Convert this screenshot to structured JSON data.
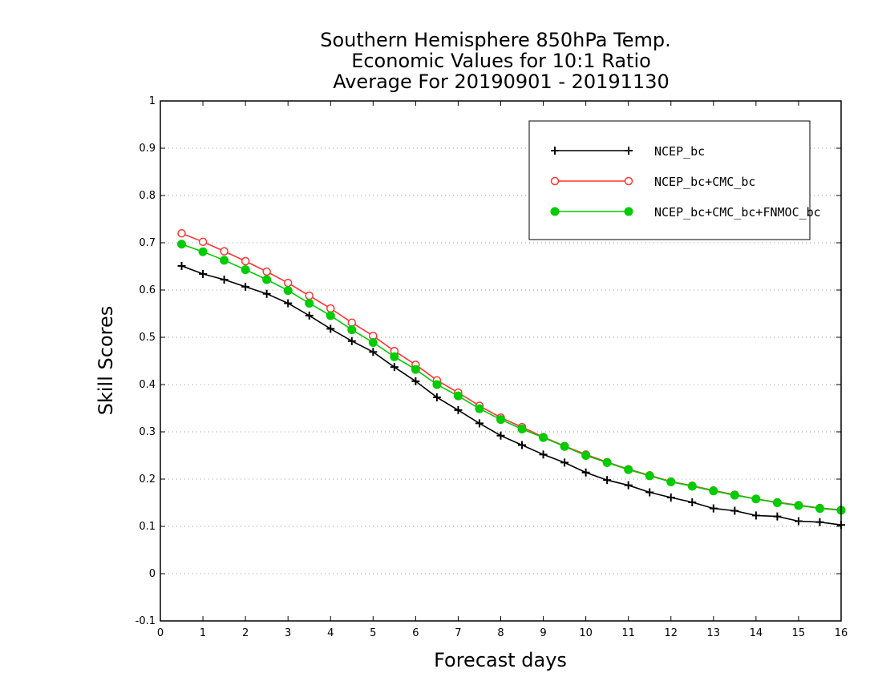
{
  "chart_data": {
    "type": "line",
    "title_lines": [
      "Southern Hemisphere 850hPa Temp.",
      "Economic Values for 10:1 Ratio",
      "Average For 20190901 - 20191130"
    ],
    "xlabel": "Forecast days",
    "ylabel": "Skill Scores",
    "xlim": [
      0,
      16
    ],
    "ylim": [
      -0.1,
      1
    ],
    "xticks": [
      "0",
      "1",
      "2",
      "3",
      "4",
      "5",
      "6",
      "7",
      "8",
      "9",
      "10",
      "11",
      "12",
      "13",
      "14",
      "15",
      "16"
    ],
    "yticks": [
      "-0.1",
      "0",
      "0.1",
      "0.2",
      "0.3",
      "0.4",
      "0.5",
      "0.6",
      "0.7",
      "0.8",
      "0.9",
      "1"
    ],
    "grid": true,
    "legend_position": "top-right",
    "x": [
      0.5,
      1,
      1.5,
      2,
      2.5,
      3,
      3.5,
      4,
      4.5,
      5,
      5.5,
      6,
      6.5,
      7,
      7.5,
      8,
      8.5,
      9,
      9.5,
      10,
      10.5,
      11,
      11.5,
      12,
      12.5,
      13,
      13.5,
      14,
      14.5,
      15,
      15.5,
      16
    ],
    "series": [
      {
        "name": "NCEP_bc",
        "color": "#000000",
        "marker": "plus",
        "values": [
          0.651,
          0.634,
          0.622,
          0.607,
          0.592,
          0.572,
          0.546,
          0.518,
          0.492,
          0.469,
          0.437,
          0.407,
          0.373,
          0.346,
          0.318,
          0.292,
          0.272,
          0.252,
          0.235,
          0.214,
          0.198,
          0.187,
          0.172,
          0.161,
          0.151,
          0.138,
          0.133,
          0.123,
          0.121,
          0.111,
          0.109,
          0.103
        ]
      },
      {
        "name": "NCEP_bc+CMC_bc",
        "color": "#ff3333",
        "marker": "open-circle",
        "values": [
          0.72,
          0.702,
          0.682,
          0.661,
          0.639,
          0.615,
          0.588,
          0.561,
          0.531,
          0.503,
          0.471,
          0.442,
          0.409,
          0.383,
          0.355,
          0.33,
          0.31,
          0.289,
          0.27,
          0.252,
          0.236,
          0.221,
          0.208,
          0.195,
          0.186,
          0.176,
          0.167,
          0.158,
          0.151,
          0.145,
          0.139,
          0.135
        ]
      },
      {
        "name": "NCEP_bc+CMC_bc+FNMOC_bc",
        "color": "#00cc00",
        "marker": "filled-circle",
        "values": [
          0.697,
          0.681,
          0.663,
          0.643,
          0.622,
          0.599,
          0.572,
          0.546,
          0.516,
          0.489,
          0.459,
          0.432,
          0.4,
          0.376,
          0.349,
          0.326,
          0.306,
          0.288,
          0.269,
          0.25,
          0.235,
          0.22,
          0.207,
          0.194,
          0.185,
          0.175,
          0.166,
          0.158,
          0.15,
          0.144,
          0.138,
          0.134
        ]
      }
    ]
  }
}
